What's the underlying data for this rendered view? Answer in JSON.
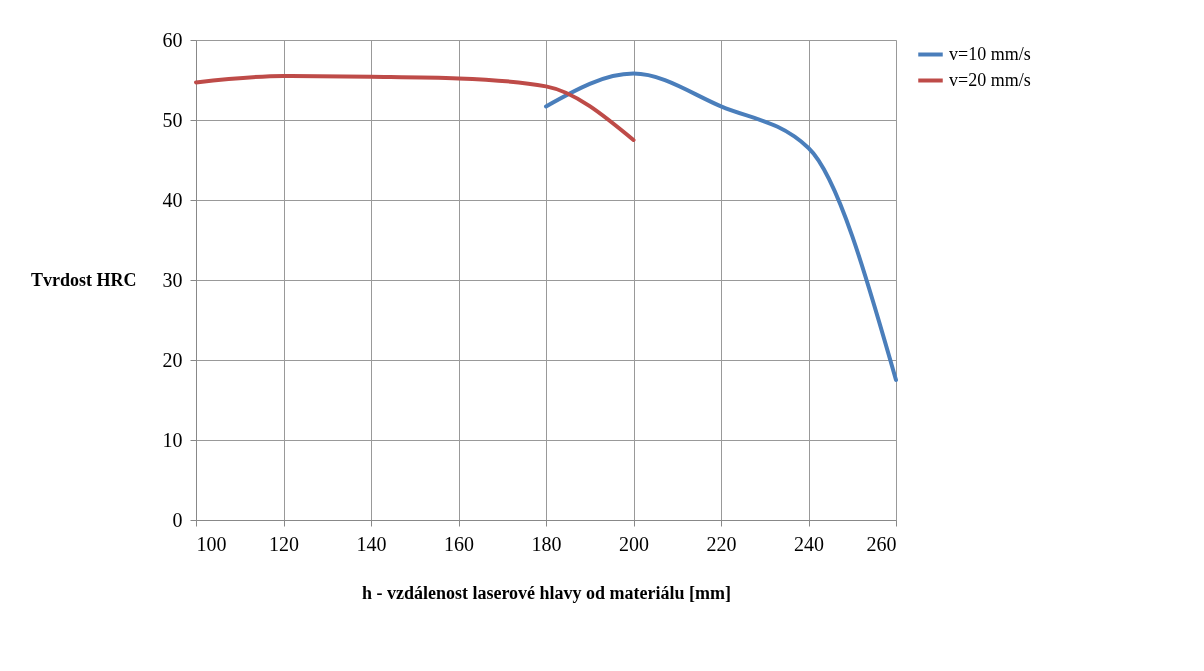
{
  "chart_data": {
    "type": "line",
    "xlabel": "h - vzdálenost laserové hlavy od materiálu [mm]",
    "ylabel": "Tvrdost HRC",
    "xlim": [
      100,
      260
    ],
    "xticks": [
      100,
      120,
      140,
      160,
      180,
      200,
      220,
      240,
      260
    ],
    "ylim": [
      0,
      60
    ],
    "yticks": [
      0,
      10,
      20,
      30,
      40,
      50,
      60
    ],
    "grid": true,
    "legend": "right",
    "marker": "none",
    "line_style": "solid",
    "series": [
      {
        "name": "v=10 mm/s",
        "color": "#4a7ebb",
        "x": [
          180,
          200,
          220,
          240,
          260
        ],
        "values": [
          51.7,
          55.8,
          51.7,
          46.5,
          17.5
        ]
      },
      {
        "name": "v=20 mm/s",
        "color": "#be4b48",
        "x": [
          100,
          120,
          140,
          160,
          180,
          200
        ],
        "values": [
          54.7,
          55.5,
          55.4,
          55.2,
          54.2,
          47.5
        ]
      }
    ]
  }
}
